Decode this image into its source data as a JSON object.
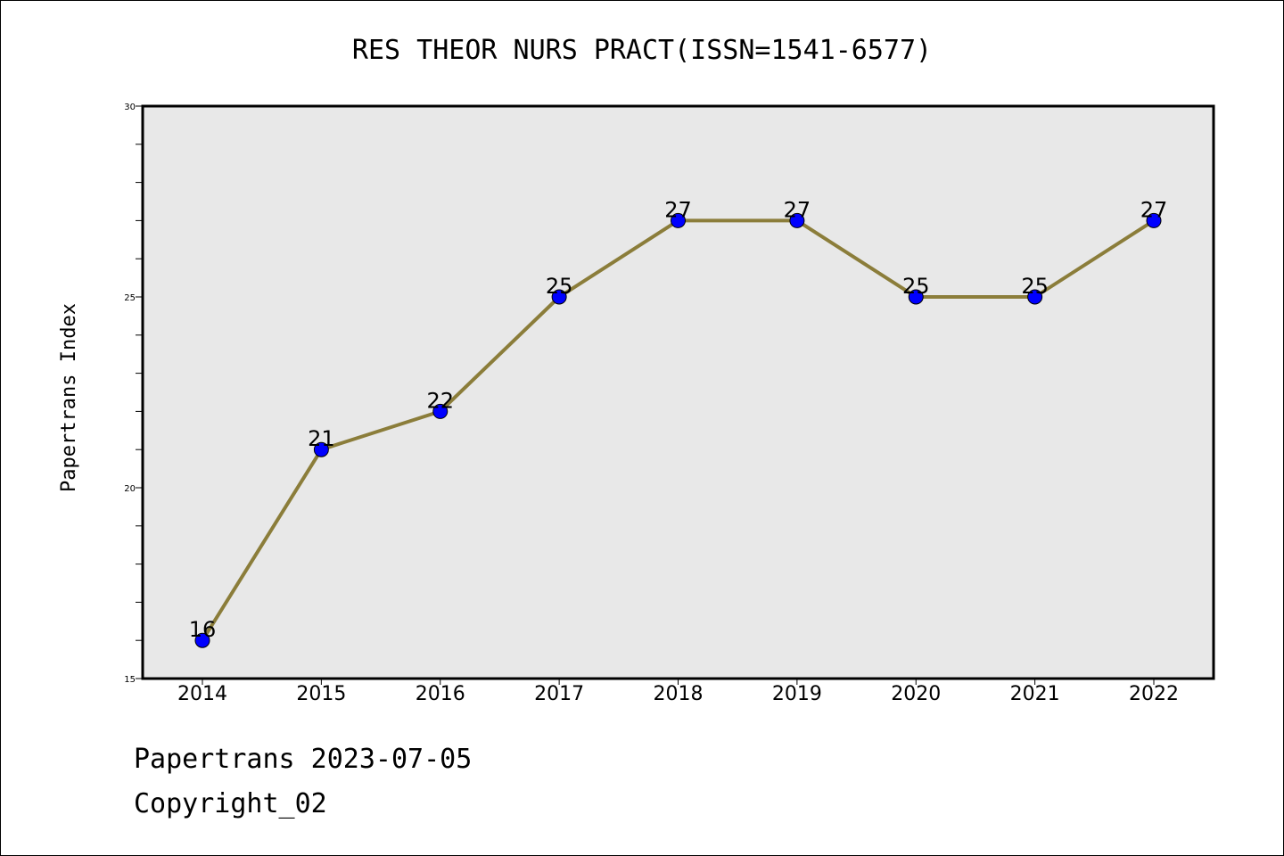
{
  "chart_data": {
    "type": "line",
    "title": "RES THEOR NURS PRACT(ISSN=1541-6577)",
    "xlabel": "",
    "ylabel": "Papertrans Index",
    "categories": [
      "2014",
      "2015",
      "2016",
      "2017",
      "2018",
      "2019",
      "2020",
      "2021",
      "2022"
    ],
    "series": [
      {
        "values": [
          16,
          21,
          22,
          25,
          27,
          27,
          25,
          25,
          27
        ]
      }
    ],
    "data_labels": [
      "16",
      "21",
      "22",
      "25",
      "27",
      "27",
      "25",
      "25",
      "27"
    ],
    "ylim": [
      15,
      30
    ],
    "y_ticks": [
      15,
      20,
      25,
      30
    ],
    "y_tick_labels": [
      "15",
      "20",
      "25",
      "30"
    ],
    "y_minor_step": 1,
    "grid": false,
    "legend": "none",
    "colors": {
      "line": "#8b7d3a",
      "marker": "#0000ff",
      "plot_background": "#e8e8e8"
    }
  },
  "footer": {
    "line1": "Papertrans 2023-07-05",
    "line2": "Copyright_02"
  }
}
